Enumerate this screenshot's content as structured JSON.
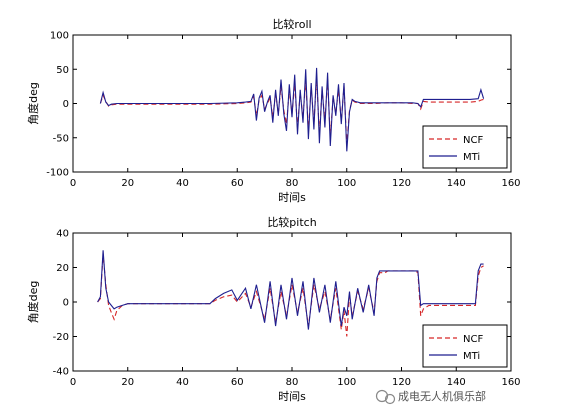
{
  "chart_data": [
    {
      "type": "line",
      "title": "比较roll",
      "xlabel": "时间s",
      "ylabel": "角度deg",
      "xlim": [
        0,
        160
      ],
      "ylim": [
        -100,
        100
      ],
      "xticks": [
        0,
        20,
        40,
        60,
        80,
        100,
        120,
        140,
        160
      ],
      "yticks": [
        -100,
        -50,
        0,
        50,
        100
      ],
      "grid": false,
      "legend": "bottom-right",
      "series": [
        {
          "name": "NCF",
          "color": "#d62728",
          "style": "dashed",
          "x": [
            10,
            11,
            12,
            13,
            14,
            16,
            20,
            30,
            40,
            50,
            60,
            63,
            65,
            66,
            67,
            68,
            69,
            70,
            71,
            72,
            73,
            74,
            75,
            76,
            77,
            78,
            79,
            80,
            81,
            82,
            83,
            84,
            85,
            86,
            87,
            88,
            89,
            90,
            91,
            92,
            93,
            94,
            95,
            96,
            97,
            98,
            99,
            100,
            101,
            102,
            103,
            105,
            108,
            110,
            115,
            120,
            124,
            126,
            127,
            128,
            130,
            135,
            140,
            145,
            148,
            149,
            150
          ],
          "y": [
            0,
            12,
            3,
            -4,
            -2,
            -1,
            -1,
            -1,
            -1,
            -1,
            0,
            1,
            2,
            10,
            -18,
            5,
            12,
            -8,
            0,
            8,
            -20,
            15,
            -15,
            25,
            -10,
            -30,
            20,
            -15,
            28,
            -35,
            15,
            -20,
            33,
            -40,
            25,
            -30,
            38,
            -45,
            20,
            -25,
            35,
            -50,
            10,
            -15,
            20,
            -25,
            25,
            -60,
            -10,
            5,
            2,
            0,
            0,
            0,
            1,
            1,
            0,
            0,
            -8,
            3,
            2,
            2,
            2,
            2,
            3,
            5,
            6
          ]
        },
        {
          "name": "MTi",
          "color": "#1f1f8f",
          "style": "solid",
          "x": [
            10,
            11,
            12,
            13,
            14,
            16,
            20,
            30,
            40,
            50,
            60,
            63,
            65,
            66,
            67,
            68,
            69,
            70,
            71,
            72,
            73,
            74,
            75,
            76,
            77,
            78,
            79,
            80,
            81,
            82,
            83,
            84,
            85,
            86,
            87,
            88,
            89,
            90,
            91,
            92,
            93,
            94,
            95,
            96,
            97,
            98,
            99,
            100,
            101,
            102,
            103,
            105,
            108,
            110,
            115,
            120,
            124,
            126,
            127,
            128,
            130,
            135,
            140,
            145,
            148,
            149,
            150
          ],
          "y": [
            0,
            16,
            2,
            -3,
            -1,
            0,
            0,
            0,
            0,
            0,
            1,
            2,
            3,
            14,
            -25,
            8,
            18,
            -12,
            2,
            12,
            -28,
            20,
            -18,
            35,
            -15,
            -40,
            28,
            -20,
            42,
            -45,
            20,
            -28,
            50,
            -52,
            30,
            -38,
            52,
            -58,
            25,
            -35,
            45,
            -62,
            12,
            -18,
            28,
            -30,
            30,
            -70,
            -12,
            6,
            3,
            1,
            1,
            1,
            1,
            1,
            1,
            0,
            -5,
            6,
            6,
            6,
            6,
            6,
            7,
            20,
            7
          ]
        }
      ]
    },
    {
      "type": "line",
      "title": "比较pitch",
      "xlabel": "时间s",
      "ylabel": "角度deg",
      "xlim": [
        0,
        160
      ],
      "ylim": [
        -40,
        40
      ],
      "xticks": [
        0,
        20,
        40,
        60,
        80,
        100,
        120,
        140,
        160
      ],
      "yticks": [
        -40,
        -20,
        0,
        20,
        40
      ],
      "grid": false,
      "legend": "bottom-right",
      "series": [
        {
          "name": "NCF",
          "color": "#d62728",
          "style": "dashed",
          "x": [
            9,
            10,
            11,
            12,
            13,
            14,
            15,
            16,
            18,
            20,
            30,
            40,
            50,
            52,
            55,
            58,
            60,
            63,
            65,
            67,
            70,
            72,
            74,
            76,
            78,
            80,
            82,
            84,
            86,
            88,
            90,
            92,
            94,
            96,
            98,
            99,
            100,
            101,
            102,
            104,
            106,
            108,
            110,
            111,
            112,
            114,
            115,
            120,
            125,
            126,
            127,
            128,
            130,
            135,
            140,
            145,
            147,
            148,
            149,
            150
          ],
          "y": [
            0,
            2,
            28,
            10,
            -2,
            -6,
            -10,
            -5,
            -2,
            -1,
            -1,
            -1,
            -1,
            1,
            3,
            4,
            0,
            5,
            -3,
            6,
            -10,
            8,
            -12,
            6,
            -8,
            10,
            -6,
            8,
            -14,
            10,
            -4,
            6,
            -10,
            8,
            -16,
            -5,
            -20,
            4,
            -8,
            6,
            -4,
            8,
            -6,
            12,
            17,
            17,
            18,
            18,
            18,
            17,
            -8,
            -4,
            -2,
            -2,
            -2,
            -2,
            -2,
            15,
            20,
            21
          ]
        },
        {
          "name": "MTi",
          "color": "#1f1f8f",
          "style": "solid",
          "x": [
            9,
            10,
            11,
            12,
            13,
            14,
            15,
            16,
            18,
            20,
            30,
            40,
            50,
            52,
            55,
            58,
            60,
            63,
            65,
            67,
            70,
            72,
            74,
            76,
            78,
            80,
            82,
            84,
            86,
            88,
            90,
            92,
            94,
            96,
            98,
            99,
            100,
            101,
            102,
            104,
            106,
            108,
            110,
            111,
            112,
            114,
            115,
            120,
            125,
            126,
            127,
            128,
            130,
            135,
            140,
            145,
            147,
            148,
            149,
            150
          ],
          "y": [
            0,
            3,
            30,
            8,
            0,
            -2,
            -4,
            -3,
            -2,
            -1,
            -1,
            -1,
            -1,
            2,
            5,
            7,
            1,
            8,
            -4,
            10,
            -12,
            12,
            -14,
            10,
            -10,
            14,
            -8,
            12,
            -16,
            14,
            -6,
            10,
            -12,
            12,
            -14,
            -3,
            -8,
            6,
            -10,
            8,
            -6,
            10,
            -8,
            14,
            18,
            18,
            18,
            18,
            18,
            18,
            -2,
            -1,
            -1,
            -1,
            -1,
            -1,
            -1,
            18,
            22,
            22
          ]
        }
      ]
    }
  ],
  "watermark": "成电无人机俱乐部"
}
